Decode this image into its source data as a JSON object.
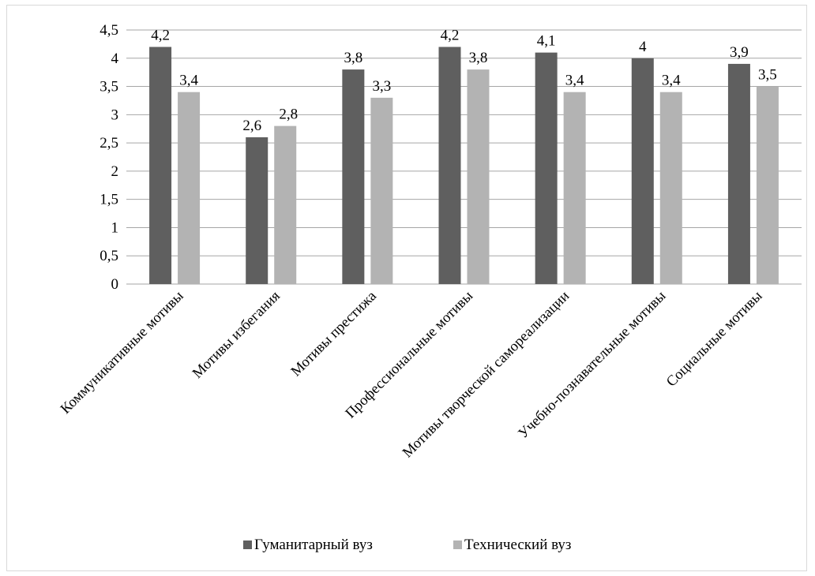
{
  "chart_data": {
    "type": "bar",
    "title": "",
    "xlabel": "",
    "ylabel": "",
    "categories": [
      "Коммуникативные мотивы",
      "Мотивы избегания",
      "Мотивы престижа",
      "Профессиональные мотивы",
      "Мотивы творческой самореализации",
      "Учебно-познавательные мотивы",
      "Социальные мотивы"
    ],
    "series": [
      {
        "name": "Гуманитарный вуз",
        "color": "#5f5f5f",
        "values": [
          4.2,
          2.6,
          3.8,
          4.2,
          4.1,
          4.0,
          3.9
        ],
        "labels": [
          "4,2",
          "2,6",
          "3,8",
          "4,2",
          "4,1",
          "4",
          "3,9"
        ]
      },
      {
        "name": "Технический вуз",
        "color": "#b3b3b3",
        "values": [
          3.4,
          2.8,
          3.3,
          3.8,
          3.4,
          3.4,
          3.5
        ],
        "labels": [
          "3,4",
          "2,8",
          "3,3",
          "3,8",
          "3,4",
          "3,4",
          "3,5"
        ]
      }
    ],
    "ylim": [
      0,
      4.5
    ],
    "yticks": [
      0,
      0.5,
      1,
      1.5,
      2,
      2.5,
      3,
      3.5,
      4,
      4.5
    ],
    "ytick_labels": [
      "0",
      "0,5",
      "1",
      "1,5",
      "2",
      "2,5",
      "3",
      "3,5",
      "4",
      "4,5"
    ],
    "grid": true,
    "grid_color": "#a6a6a6",
    "legend": "bottom"
  }
}
